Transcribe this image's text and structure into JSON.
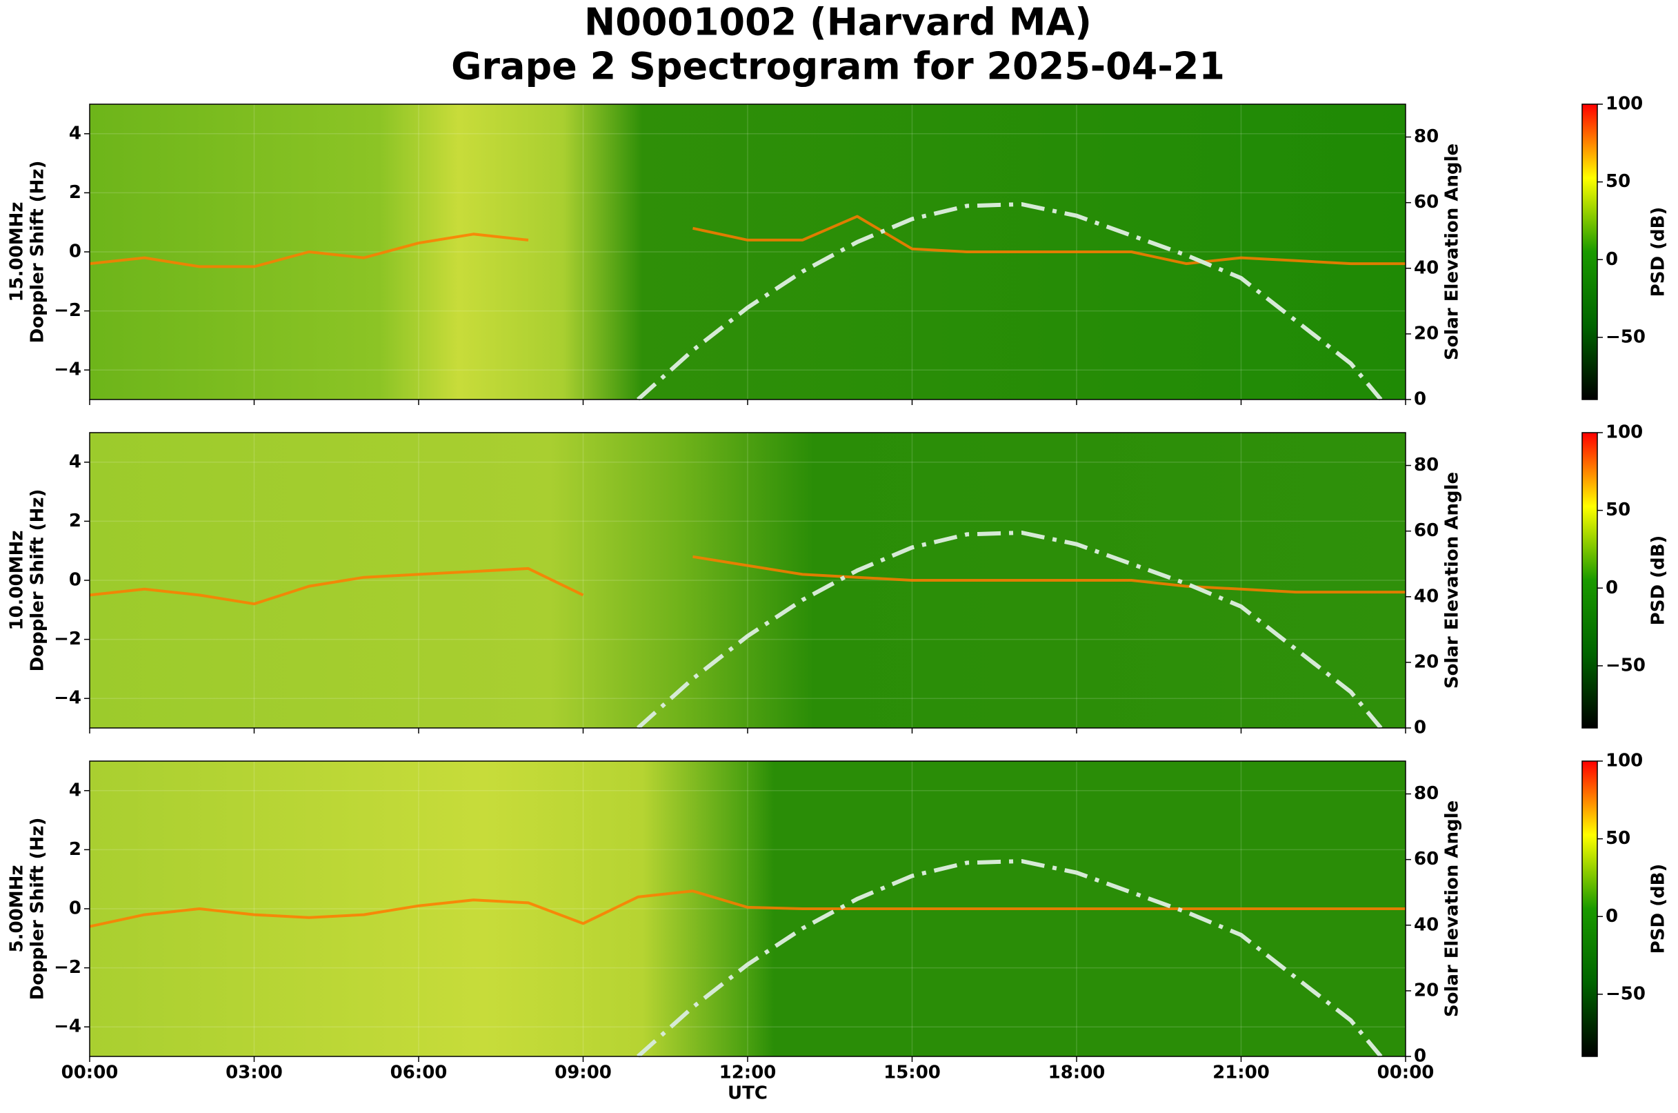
{
  "title": [
    "N0001002 (Harvard MA)",
    "Grape 2 Spectrogram for 2025-04-21"
  ],
  "chart_data": [
    {
      "type": "spectrogram",
      "ylabel": [
        "15.00MHz",
        "Doppler Shift (Hz)"
      ],
      "y2label": "Solar Elevation Angle",
      "xlim": [
        0,
        24
      ],
      "ylim": [
        -5,
        5
      ],
      "yticks": [
        {
          "value": -4,
          "label": "−4"
        },
        {
          "value": -2,
          "label": "−2"
        },
        0,
        2,
        4
      ],
      "y2lim": [
        0,
        90
      ],
      "y2ticks": [
        0,
        20,
        40,
        60,
        80
      ],
      "grid": true,
      "trace": {
        "color": "#ff7a00",
        "x": [
          0,
          1,
          2,
          3,
          4,
          5,
          6,
          7,
          8,
          9,
          10,
          11,
          12,
          13,
          14,
          15,
          16,
          17,
          18,
          19,
          20,
          21,
          22,
          23,
          24
        ],
        "values": [
          -0.4,
          -0.2,
          -0.5,
          -0.5,
          0.0,
          -0.2,
          0.3,
          0.6,
          0.4,
          null,
          null,
          0.8,
          0.4,
          0.4,
          1.2,
          0.1,
          0.0,
          0.0,
          0.0,
          0.0,
          -0.4,
          -0.2,
          -0.3,
          -0.4,
          -0.4
        ]
      },
      "series": [
        {
          "axis": "y2",
          "color": "#d6ead6",
          "x": [
            10,
            11,
            12,
            13,
            14,
            15,
            16,
            17,
            18,
            19,
            20,
            21,
            22,
            23,
            23.55
          ],
          "values": [
            0,
            15,
            28,
            39,
            48,
            55,
            59,
            59.5,
            56,
            50,
            44,
            37,
            24,
            11,
            0
          ]
        }
      ],
      "colorbar": {
        "label": "PSD (dB)",
        "clim": [
          -90,
          100
        ],
        "ticks": [
          {
            "value": -50,
            "label": "−50"
          },
          0,
          50,
          100
        ],
        "colors": [
          "#000000",
          "#006400",
          "#1a9a00",
          "#ffff00",
          "#ff0000"
        ]
      }
    },
    {
      "type": "spectrogram",
      "ylabel": [
        "10.00MHz",
        "Doppler Shift (Hz)"
      ],
      "y2label": "Solar Elevation Angle",
      "xlim": [
        0,
        24
      ],
      "ylim": [
        -5,
        5
      ],
      "yticks": [
        {
          "value": -4,
          "label": "−4"
        },
        {
          "value": -2,
          "label": "−2"
        },
        0,
        2,
        4
      ],
      "y2lim": [
        0,
        90
      ],
      "y2ticks": [
        0,
        20,
        40,
        60,
        80
      ],
      "grid": true,
      "trace": {
        "color": "#ff7a00",
        "x": [
          0,
          1,
          2,
          3,
          4,
          5,
          6,
          7,
          8,
          9,
          10,
          11,
          12,
          13,
          14,
          15,
          16,
          17,
          18,
          19,
          20,
          21,
          22,
          23,
          24
        ],
        "values": [
          -0.5,
          -0.3,
          -0.5,
          -0.8,
          -0.2,
          0.1,
          0.2,
          0.3,
          0.4,
          -0.5,
          null,
          0.8,
          0.5,
          0.2,
          0.1,
          0.0,
          0.0,
          0.0,
          0.0,
          0.0,
          -0.2,
          -0.3,
          -0.4,
          -0.4,
          -0.4
        ]
      },
      "series": [
        {
          "axis": "y2",
          "color": "#d6ead6",
          "x": [
            10,
            11,
            12,
            13,
            14,
            15,
            16,
            17,
            18,
            19,
            20,
            21,
            22,
            23,
            23.55
          ],
          "values": [
            0,
            15,
            28,
            39,
            48,
            55,
            59,
            59.5,
            56,
            50,
            44,
            37,
            24,
            11,
            0
          ]
        }
      ],
      "colorbar": {
        "label": "PSD (dB)",
        "clim": [
          -90,
          100
        ],
        "ticks": [
          {
            "value": -50,
            "label": "−50"
          },
          0,
          50,
          100
        ],
        "colors": [
          "#000000",
          "#006400",
          "#1a9a00",
          "#ffff00",
          "#ff0000"
        ]
      }
    },
    {
      "type": "spectrogram",
      "ylabel": [
        "5.00MHz",
        "Doppler Shift (Hz)"
      ],
      "y2label": "Solar Elevation Angle",
      "xlabel": "UTC",
      "xlim": [
        0,
        24
      ],
      "xticks": [
        {
          "value": 0,
          "label": "00:00"
        },
        {
          "value": 3,
          "label": "03:00"
        },
        {
          "value": 6,
          "label": "06:00"
        },
        {
          "value": 9,
          "label": "09:00"
        },
        {
          "value": 12,
          "label": "12:00"
        },
        {
          "value": 15,
          "label": "15:00"
        },
        {
          "value": 18,
          "label": "18:00"
        },
        {
          "value": 21,
          "label": "21:00"
        },
        {
          "value": 24,
          "label": "00:00"
        }
      ],
      "ylim": [
        -5,
        5
      ],
      "yticks": [
        {
          "value": -4,
          "label": "−4"
        },
        {
          "value": -2,
          "label": "−2"
        },
        0,
        2,
        4
      ],
      "y2lim": [
        0,
        90
      ],
      "y2ticks": [
        0,
        20,
        40,
        60,
        80
      ],
      "grid": true,
      "trace": {
        "color": "#ff7a00",
        "x": [
          0,
          1,
          2,
          3,
          4,
          5,
          6,
          7,
          8,
          9,
          10,
          11,
          12,
          13,
          14,
          15,
          16,
          17,
          18,
          19,
          20,
          21,
          22,
          23,
          24
        ],
        "values": [
          -0.6,
          -0.2,
          0.0,
          -0.2,
          -0.3,
          -0.2,
          0.1,
          0.3,
          0.2,
          -0.5,
          0.4,
          0.6,
          0.05,
          0.0,
          0.0,
          0.0,
          0.0,
          0.0,
          0.0,
          0.0,
          0.0,
          0.0,
          0.0,
          0.0,
          0.0
        ]
      },
      "series": [
        {
          "axis": "y2",
          "color": "#d6ead6",
          "x": [
            10,
            11,
            12,
            13,
            14,
            15,
            16,
            17,
            18,
            19,
            20,
            21,
            22,
            23,
            23.55
          ],
          "values": [
            0,
            15,
            28,
            39,
            48,
            55,
            59,
            59.5,
            56,
            50,
            44,
            37,
            24,
            11,
            0
          ]
        }
      ],
      "colorbar": {
        "label": "PSD (dB)",
        "clim": [
          -90,
          100
        ],
        "ticks": [
          {
            "value": -50,
            "label": "−50"
          },
          0,
          50,
          100
        ],
        "colors": [
          "#000000",
          "#006400",
          "#1a9a00",
          "#ffff00",
          "#ff0000"
        ]
      }
    }
  ]
}
